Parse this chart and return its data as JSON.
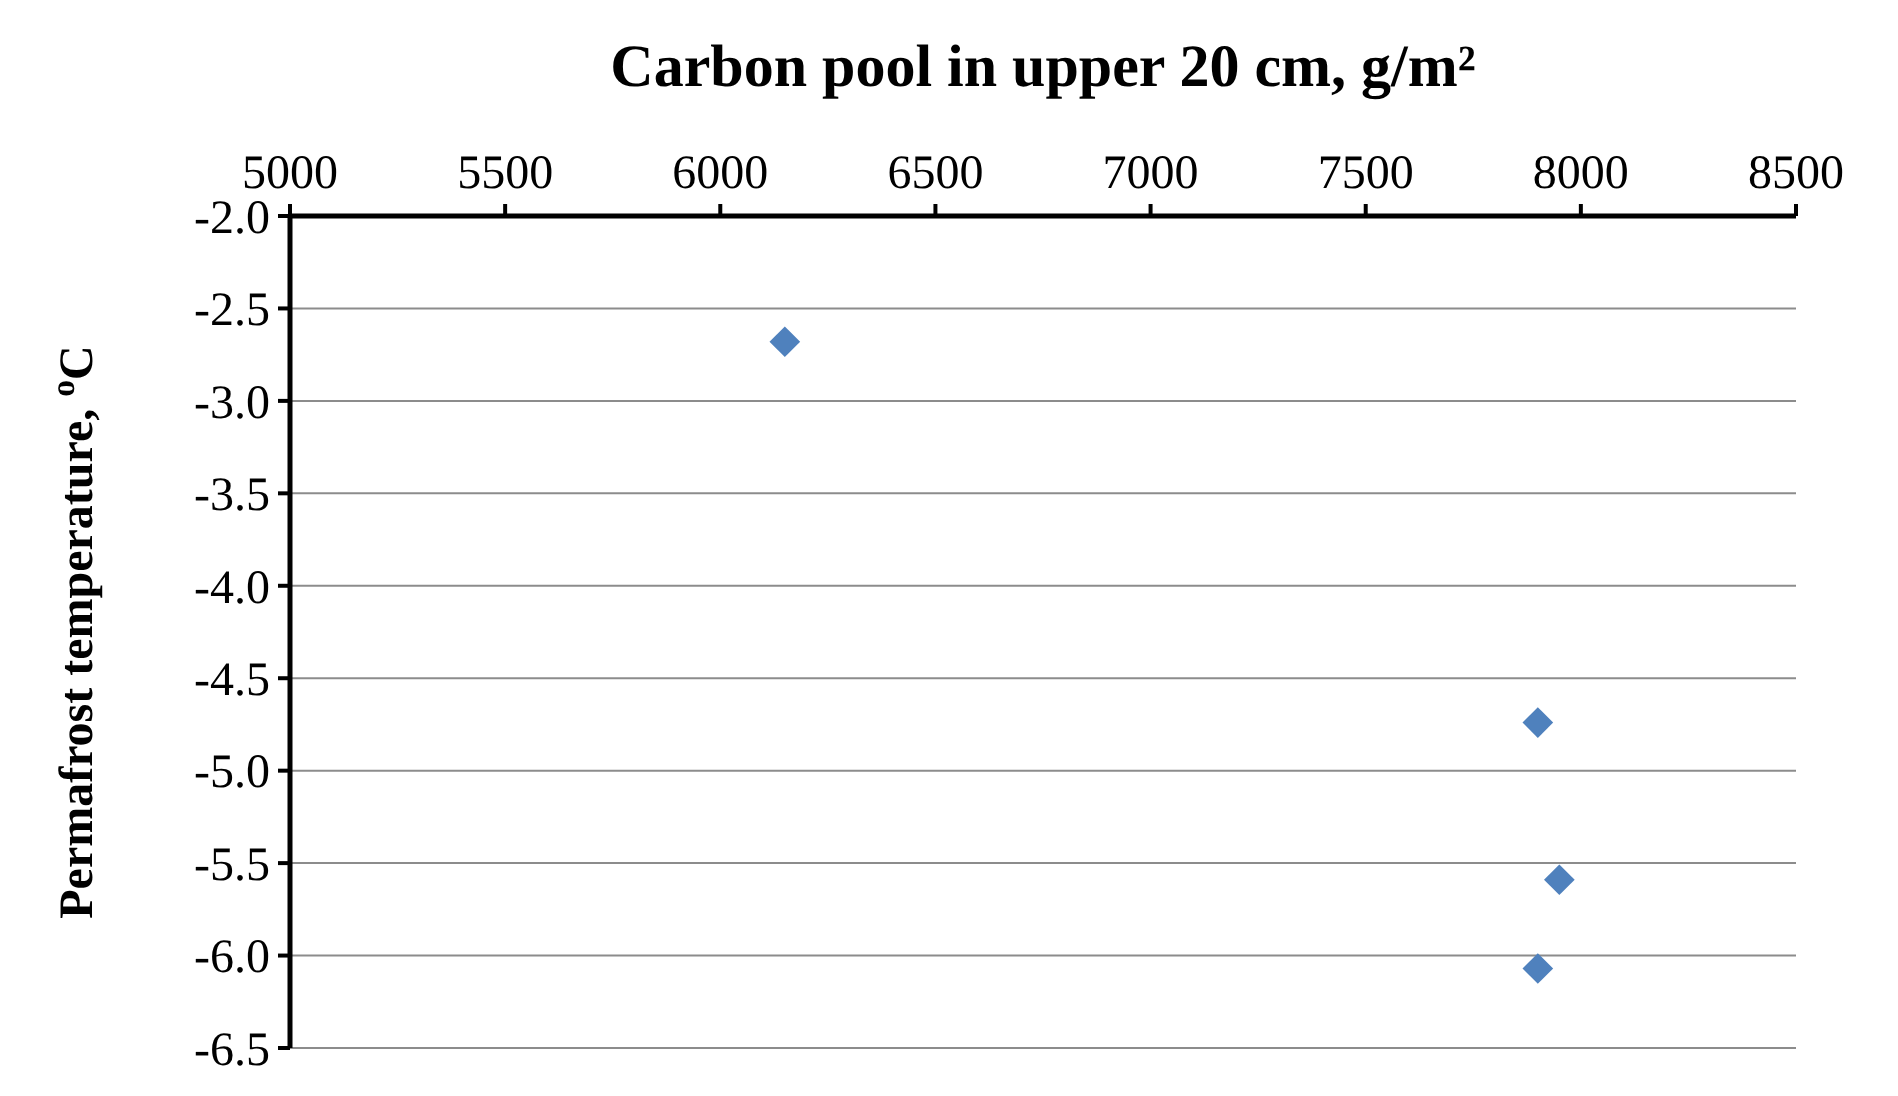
{
  "chart_data": {
    "type": "scatter",
    "xlabel": "Carbon pool in upper 20 cm, g/m²",
    "ylabel": "Permafrost temperature, $^{o}$C",
    "x": [
      6150,
      7900,
      7950,
      7900
    ],
    "series": [
      {
        "color": "#4f81bd",
        "values": [
          -2.68,
          -4.74,
          -5.59,
          -6.07
        ]
      }
    ],
    "xlim": [
      5000,
      8500
    ],
    "xticks": [
      5000,
      5500,
      6000,
      6500,
      7000,
      7500,
      8000,
      8500
    ],
    "ylim": [
      -6.5,
      -2
    ],
    "yticks": [
      {
        "value": -2,
        "label": "-2.0"
      },
      {
        "value": -2.5,
        "label": "-2.5"
      },
      {
        "value": -3,
        "label": "-3.0"
      },
      {
        "value": -3.5,
        "label": "-3.5"
      },
      {
        "value": -4,
        "label": "-4.0"
      },
      {
        "value": -4.5,
        "label": "-4.5"
      },
      {
        "value": -5,
        "label": "-5.0"
      },
      {
        "value": -5.5,
        "label": "-5.5"
      },
      {
        "value": -6,
        "label": "-6.0"
      },
      {
        "value": -6.5,
        "label": "-6.5"
      }
    ],
    "grid": "y",
    "marker": "diamond"
  }
}
